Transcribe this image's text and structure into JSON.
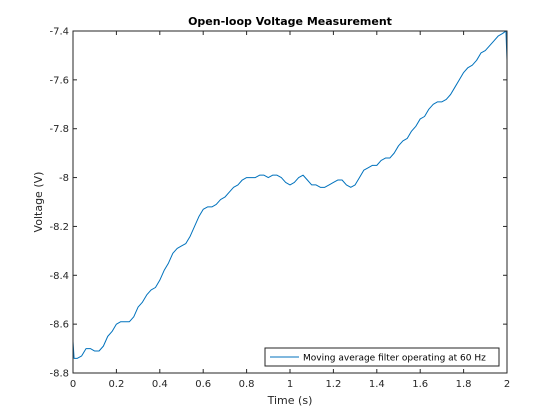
{
  "chart_data": {
    "type": "line",
    "title": "Open-loop Voltage Measurement",
    "xlabel": "Time (s)",
    "ylabel": "Voltage (V)",
    "xlim": [
      0,
      2
    ],
    "ylim": [
      -8.8,
      -7.4
    ],
    "xticks": [
      0,
      0.2,
      0.4,
      0.6,
      0.8,
      1,
      1.2,
      1.4,
      1.6,
      1.8,
      2
    ],
    "xtick_labels": [
      "0",
      "0.2",
      "0.4",
      "0.6",
      "0.8",
      "1",
      "1.2",
      "1.4",
      "1.6",
      "1.8",
      "2"
    ],
    "yticks": [
      -7.4,
      -7.6,
      -7.8,
      -8,
      -8.2,
      -8.4,
      -8.6,
      -8.8
    ],
    "ytick_labels": [
      "-7.4",
      "-7.6",
      "-7.8",
      "-8",
      "-8.2",
      "-8.4",
      "-8.6",
      "-8.8"
    ],
    "grid": false,
    "legend_position": "bottom-right",
    "series": [
      {
        "name": "Moving average filter operating at 60 Hz",
        "color": "#0072BD",
        "x": [
          0,
          0.005,
          0.02,
          0.04,
          0.06,
          0.07,
          0.08,
          0.1,
          0.12,
          0.14,
          0.16,
          0.18,
          0.2,
          0.22,
          0.24,
          0.26,
          0.28,
          0.3,
          0.32,
          0.34,
          0.36,
          0.38,
          0.4,
          0.42,
          0.44,
          0.46,
          0.48,
          0.5,
          0.52,
          0.54,
          0.56,
          0.58,
          0.6,
          0.62,
          0.64,
          0.66,
          0.68,
          0.7,
          0.72,
          0.74,
          0.76,
          0.78,
          0.8,
          0.82,
          0.84,
          0.86,
          0.88,
          0.9,
          0.92,
          0.94,
          0.96,
          0.98,
          1.0,
          1.02,
          1.04,
          1.06,
          1.08,
          1.1,
          1.12,
          1.14,
          1.16,
          1.18,
          1.2,
          1.22,
          1.24,
          1.26,
          1.28,
          1.3,
          1.32,
          1.34,
          1.36,
          1.38,
          1.4,
          1.42,
          1.44,
          1.46,
          1.48,
          1.5,
          1.52,
          1.54,
          1.56,
          1.58,
          1.6,
          1.62,
          1.64,
          1.66,
          1.68,
          1.7,
          1.72,
          1.74,
          1.76,
          1.78,
          1.8,
          1.82,
          1.84,
          1.86,
          1.88,
          1.9,
          1.92,
          1.94,
          1.96,
          1.98,
          1.995,
          2.0
        ],
        "y": [
          -8.67,
          -8.74,
          -8.74,
          -8.73,
          -8.7,
          -8.7,
          -8.7,
          -8.71,
          -8.71,
          -8.69,
          -8.65,
          -8.63,
          -8.6,
          -8.59,
          -8.59,
          -8.59,
          -8.57,
          -8.53,
          -8.51,
          -8.48,
          -8.46,
          -8.45,
          -8.42,
          -8.38,
          -8.35,
          -8.31,
          -8.29,
          -8.28,
          -8.27,
          -8.24,
          -8.2,
          -8.16,
          -8.13,
          -8.12,
          -8.12,
          -8.11,
          -8.09,
          -8.08,
          -8.06,
          -8.04,
          -8.03,
          -8.01,
          -8.0,
          -8.0,
          -8.0,
          -7.99,
          -7.99,
          -8.0,
          -7.99,
          -7.99,
          -8.0,
          -8.02,
          -8.03,
          -8.02,
          -8.0,
          -7.99,
          -8.01,
          -8.03,
          -8.03,
          -8.04,
          -8.04,
          -8.03,
          -8.02,
          -8.01,
          -8.01,
          -8.03,
          -8.04,
          -8.03,
          -8.0,
          -7.97,
          -7.96,
          -7.95,
          -7.95,
          -7.93,
          -7.92,
          -7.92,
          -7.9,
          -7.87,
          -7.85,
          -7.84,
          -7.81,
          -7.79,
          -7.76,
          -7.75,
          -7.72,
          -7.7,
          -7.69,
          -7.69,
          -7.68,
          -7.66,
          -7.63,
          -7.6,
          -7.57,
          -7.55,
          -7.54,
          -7.52,
          -7.49,
          -7.48,
          -7.46,
          -7.44,
          -7.42,
          -7.41,
          -7.4,
          -7.52
        ]
      }
    ]
  }
}
